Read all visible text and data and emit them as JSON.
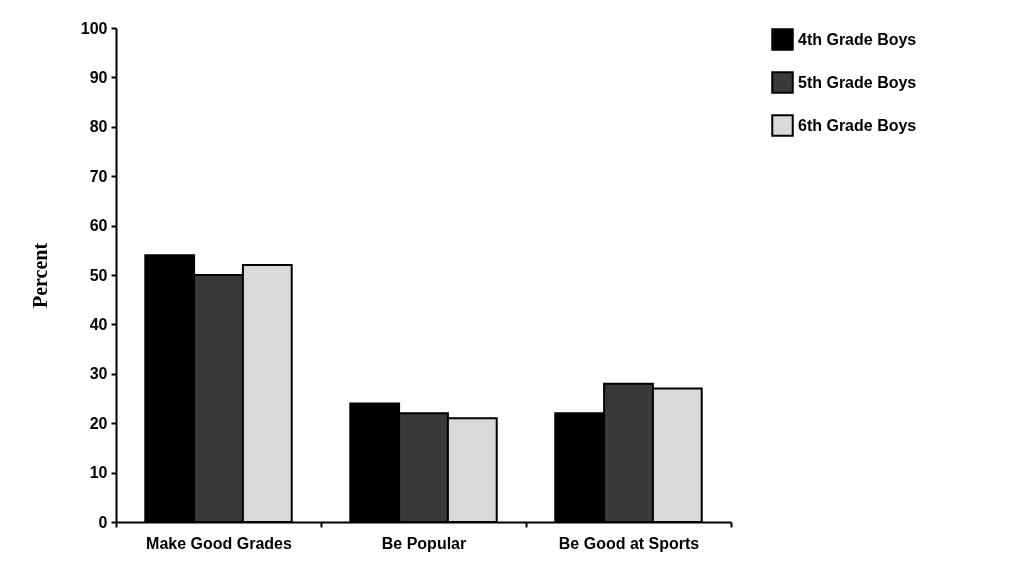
{
  "chart_data": {
    "type": "bar",
    "ylabel": "Percent",
    "categories": [
      "Make Good Grades",
      "Be Popular",
      "Be Good at Sports"
    ],
    "series": [
      {
        "name": "4th Grade Boys",
        "color": "#000000",
        "values": [
          54,
          24,
          22
        ]
      },
      {
        "name": "5th Grade Boys",
        "color": "#3a3a3a",
        "values": [
          50,
          22,
          28
        ]
      },
      {
        "name": "6th Grade Boys",
        "color": "#d9d9d9",
        "values": [
          52,
          21,
          27
        ]
      }
    ],
    "ylim": [
      0,
      100
    ],
    "yticks": [
      0,
      10,
      20,
      30,
      40,
      50,
      60,
      70,
      80,
      90,
      100
    ],
    "grid": false,
    "legend": "right"
  }
}
